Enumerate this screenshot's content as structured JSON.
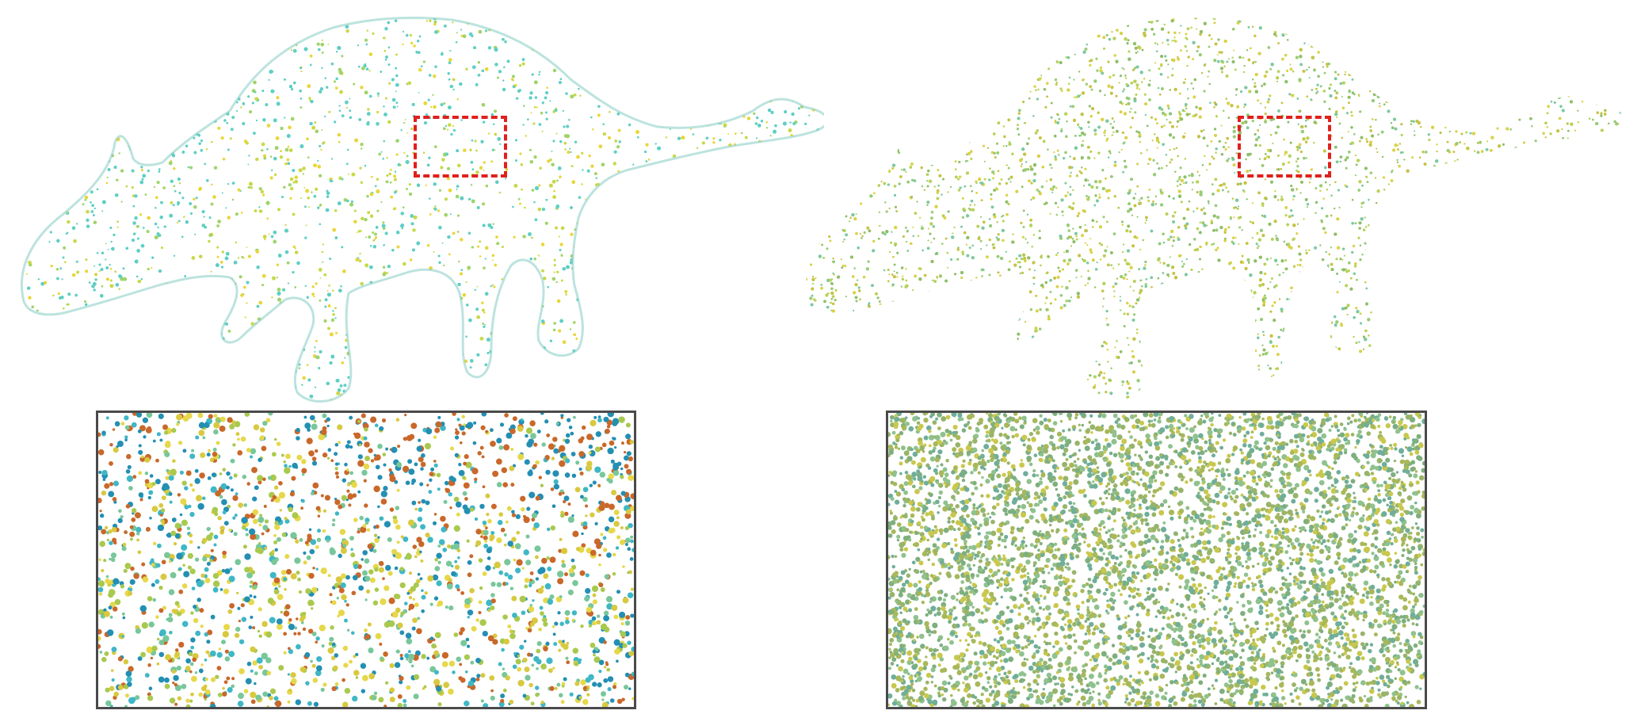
{
  "figure": {
    "panels": [
      {
        "id": "left",
        "variant": "uneven",
        "palette": [
          "#e8d63a",
          "#c9d84a",
          "#9fd46a",
          "#5fcfc4",
          "#33b6d8",
          "#1f95c9",
          "#d9742a"
        ],
        "inset_palette": [
          "#d8c940",
          "#a9c94e",
          "#78c79a",
          "#3fb7c6",
          "#238fb3",
          "#c9682a",
          "#e6d84a"
        ]
      },
      {
        "id": "right",
        "variant": "uniform",
        "palette": [
          "#d9d24a",
          "#b8d25a",
          "#98cc78",
          "#7cc9a0",
          "#8fbf6a",
          "#c6c347"
        ],
        "inset_palette": [
          "#a8b85a",
          "#7eaf7e",
          "#8fc28e",
          "#6fae9a",
          "#c9c84e",
          "#98b46a"
        ]
      }
    ],
    "roi_color": "#e0201c",
    "inset_border_color": "#4a4a4a"
  }
}
